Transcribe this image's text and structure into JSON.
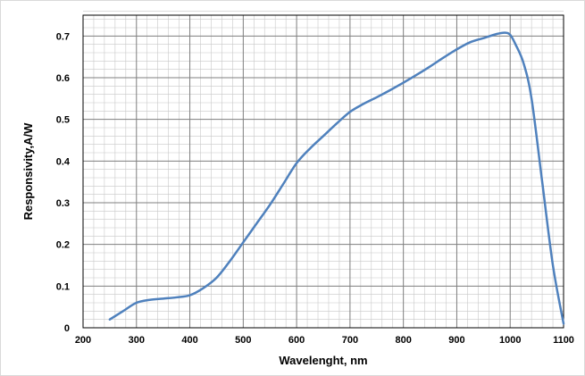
{
  "chart_data": {
    "type": "line",
    "title": "",
    "xlabel": "Wavelenght, nm",
    "ylabel": "Responsivity,A/W",
    "xlim": [
      200,
      1100
    ],
    "ylim": [
      0,
      0.75
    ],
    "x_ticks": [
      200,
      300,
      400,
      500,
      600,
      700,
      800,
      900,
      1000,
      1100
    ],
    "y_ticks": [
      0,
      0.1,
      0.2,
      0.3,
      0.4,
      0.5,
      0.6,
      0.7
    ],
    "y_tick_labels": [
      "0",
      "0.1",
      "0.2",
      "0.3",
      "0.4",
      "0.5",
      "0.6",
      "0.7"
    ],
    "grid": true,
    "legend": "none",
    "series": [
      {
        "color": "#4f81bd",
        "x": [
          250,
          275,
          300,
          325,
          350,
          375,
          400,
          425,
          450,
          475,
          500,
          525,
          550,
          575,
          600,
          625,
          650,
          675,
          700,
          725,
          750,
          775,
          800,
          825,
          850,
          875,
          900,
          925,
          950,
          975,
          990,
          1000,
          1010,
          1025,
          1040,
          1060,
          1080,
          1100
        ],
        "y": [
          0.02,
          0.04,
          0.06,
          0.067,
          0.07,
          0.073,
          0.078,
          0.095,
          0.12,
          0.16,
          0.205,
          0.25,
          0.295,
          0.345,
          0.395,
          0.43,
          0.46,
          0.49,
          0.518,
          0.537,
          0.553,
          0.57,
          0.588,
          0.607,
          0.627,
          0.648,
          0.668,
          0.685,
          0.695,
          0.705,
          0.708,
          0.703,
          0.68,
          0.635,
          0.55,
          0.35,
          0.15,
          0.01
        ]
      }
    ]
  }
}
